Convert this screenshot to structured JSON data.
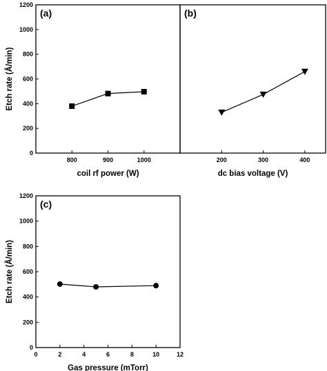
{
  "chart_data": [
    {
      "panel_label": "(a)",
      "type": "line",
      "marker": "square",
      "xlabel": "coil rf power (W)",
      "ylabel": "Etch rate (Å/min)",
      "xlim": [
        700,
        1100
      ],
      "ylim": [
        0,
        1200
      ],
      "xticks": [
        800,
        900,
        1000
      ],
      "yticks": [
        0,
        200,
        400,
        600,
        800,
        1000,
        1200
      ],
      "x": [
        800,
        900,
        1000
      ],
      "values": [
        380,
        482,
        497
      ]
    },
    {
      "panel_label": "(b)",
      "type": "line",
      "marker": "triangle-down",
      "xlabel": "dc bias voltage (V)",
      "ylabel": "",
      "xlim": [
        100,
        450
      ],
      "ylim": [
        0,
        1200
      ],
      "xticks": [
        200,
        300,
        400
      ],
      "yticks": [],
      "x": [
        200,
        300,
        400
      ],
      "values": [
        330,
        475,
        660
      ]
    },
    {
      "panel_label": "(c)",
      "type": "line",
      "marker": "circle",
      "xlabel": "Gas pressure (mTorr)",
      "ylabel": "Etch rate (Å/min)",
      "xlim": [
        0,
        12
      ],
      "ylim": [
        0,
        1200
      ],
      "xticks": [
        0,
        2,
        4,
        6,
        8,
        10,
        12
      ],
      "yticks": [
        0,
        200,
        400,
        600,
        800,
        1000,
        1200
      ],
      "x": [
        2,
        5,
        10
      ],
      "values": [
        502,
        480,
        490
      ]
    }
  ]
}
